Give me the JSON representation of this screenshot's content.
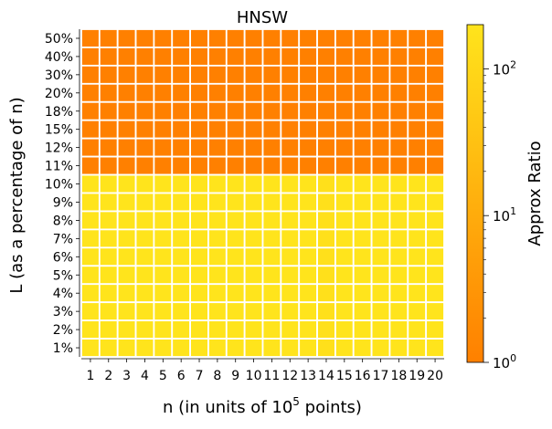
{
  "chart_data": {
    "type": "heatmap",
    "title": "HNSW",
    "xlabel": "n (in units of 10",
    "xlabel_sup": "5",
    "xlabel_tail": " points)",
    "ylabel": "L (as a percentage of n)",
    "x_categories": [
      "1",
      "2",
      "3",
      "4",
      "5",
      "6",
      "7",
      "8",
      "9",
      "10",
      "11",
      "12",
      "13",
      "14",
      "15",
      "16",
      "17",
      "18",
      "19",
      "20"
    ],
    "y_categories_top_to_bottom": [
      "50%",
      "40%",
      "30%",
      "20%",
      "18%",
      "15%",
      "12%",
      "11%",
      "10%",
      "9%",
      "8%",
      "7%",
      "6%",
      "5%",
      "4%",
      "3%",
      "2%",
      "1%"
    ],
    "values_top_to_bottom": [
      [
        1,
        1,
        1,
        1,
        1,
        1,
        1,
        1,
        1,
        1,
        1,
        1,
        1,
        1,
        1,
        1,
        1,
        1,
        1,
        1
      ],
      [
        1,
        1,
        1,
        1,
        1,
        1,
        1,
        1,
        1,
        1,
        1,
        1,
        1,
        1,
        1,
        1,
        1,
        1,
        1,
        1
      ],
      [
        1,
        1,
        1,
        1,
        1,
        1,
        1,
        1,
        1,
        1,
        1,
        1,
        1,
        1,
        1,
        1,
        1,
        1,
        1,
        1
      ],
      [
        1,
        1,
        1,
        1,
        1,
        1,
        1,
        1,
        1,
        1,
        1,
        1,
        1,
        1,
        1,
        1,
        1,
        1,
        1,
        1
      ],
      [
        1,
        1,
        1,
        1,
        1,
        1,
        1,
        1,
        1,
        1,
        1,
        1,
        1,
        1,
        1,
        1,
        1,
        1,
        1,
        1
      ],
      [
        1,
        1,
        1,
        1,
        1,
        1,
        1,
        1,
        1,
        1,
        1,
        1,
        1,
        1,
        1,
        1,
        1,
        1,
        1,
        1
      ],
      [
        1,
        1,
        1,
        1,
        1,
        1,
        1,
        1,
        1,
        1,
        1,
        1,
        1,
        1,
        1,
        1,
        1,
        1,
        1,
        1
      ],
      [
        1,
        1,
        1,
        1,
        1,
        1,
        1,
        1,
        1,
        1,
        1,
        1,
        1,
        1,
        1,
        1,
        1,
        1,
        1,
        1
      ],
      [
        200,
        200,
        200,
        200,
        200,
        200,
        200,
        200,
        200,
        200,
        200,
        200,
        200,
        160,
        200,
        200,
        200,
        200,
        200,
        200
      ],
      [
        200,
        200,
        200,
        200,
        200,
        200,
        200,
        200,
        200,
        200,
        200,
        200,
        200,
        160,
        200,
        200,
        200,
        200,
        200,
        200
      ],
      [
        200,
        200,
        200,
        200,
        200,
        200,
        200,
        200,
        200,
        200,
        200,
        200,
        200,
        160,
        200,
        200,
        200,
        200,
        200,
        200
      ],
      [
        200,
        200,
        200,
        200,
        200,
        200,
        200,
        200,
        200,
        200,
        200,
        200,
        200,
        160,
        200,
        200,
        200,
        200,
        200,
        200
      ],
      [
        200,
        200,
        200,
        200,
        200,
        200,
        200,
        200,
        200,
        200,
        200,
        200,
        200,
        160,
        200,
        200,
        200,
        200,
        200,
        200
      ],
      [
        200,
        200,
        200,
        200,
        200,
        200,
        200,
        200,
        200,
        200,
        200,
        200,
        200,
        160,
        200,
        200,
        200,
        200,
        200,
        200
      ],
      [
        200,
        200,
        200,
        200,
        200,
        200,
        200,
        200,
        200,
        200,
        200,
        200,
        200,
        160,
        200,
        200,
        200,
        200,
        200,
        200
      ],
      [
        200,
        200,
        200,
        200,
        200,
        200,
        200,
        200,
        200,
        200,
        200,
        200,
        200,
        160,
        200,
        200,
        200,
        200,
        200,
        200
      ],
      [
        200,
        200,
        200,
        200,
        200,
        200,
        200,
        200,
        200,
        200,
        200,
        200,
        200,
        160,
        200,
        200,
        200,
        200,
        200,
        200
      ],
      [
        200,
        200,
        200,
        200,
        200,
        200,
        200,
        200,
        200,
        200,
        200,
        200,
        200,
        160,
        200,
        200,
        200,
        200,
        200,
        200
      ]
    ],
    "colorbar": {
      "label": "Approx Ratio",
      "scale": "log",
      "range": [
        1,
        200
      ],
      "ticks": [
        {
          "value": 1,
          "base": "10",
          "exp": "0"
        },
        {
          "value": 10,
          "base": "10",
          "exp": "1"
        },
        {
          "value": 100,
          "base": "10",
          "exp": "2"
        }
      ],
      "color_low": "#ff8000",
      "color_high": "#ffe41c"
    },
    "grid": false,
    "cell_border_color": "#ffffff"
  }
}
